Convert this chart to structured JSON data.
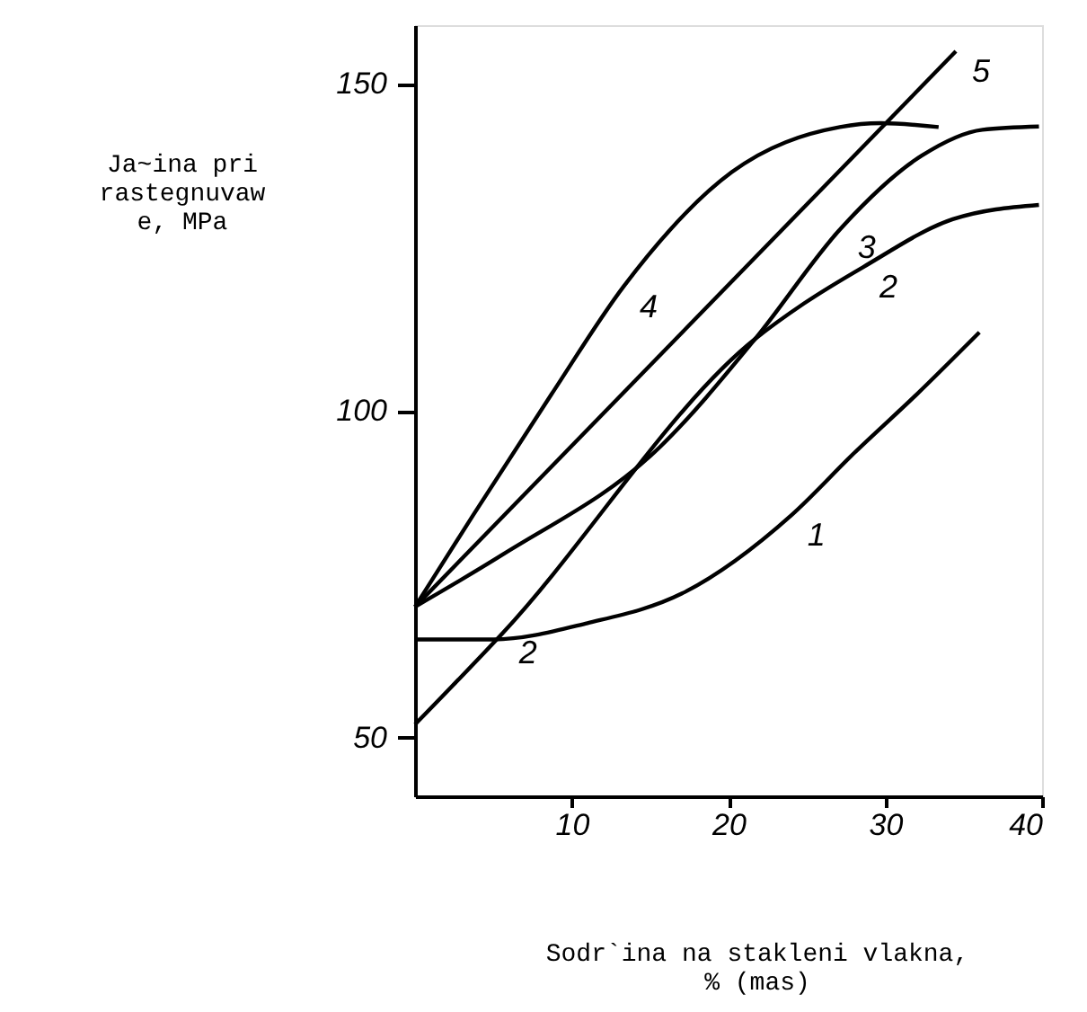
{
  "chart_data": {
    "type": "line",
    "xlabel": "Sodr`ina na stakleni vlakna, % (mas)",
    "ylabel": "Ja~ina pri rastegnuvawe, MPa",
    "xlim": [
      0,
      40
    ],
    "ylim": [
      41,
      159
    ],
    "xticks": [
      10,
      20,
      30,
      40
    ],
    "yticks": [
      50,
      100,
      150
    ],
    "grid": false,
    "marker": "none",
    "line_style": "solid",
    "series": [
      {
        "color": "#000000",
        "x": [
          0,
          5,
          11,
          17,
          24,
          28,
          32,
          36
        ],
        "values": [
          65,
          65,
          67.5,
          72,
          84,
          93.5,
          102.5,
          112
        ]
      },
      {
        "color": "#000000",
        "x": [
          0,
          5.6,
          21.7,
          24.8,
          28.6,
          34.3,
          39.8
        ],
        "values": [
          52,
          66,
          111,
          116.4,
          122,
          129.3,
          131.5
        ]
      },
      {
        "color": "#000000",
        "x": [
          0,
          5.6,
          15.6,
          21.7,
          27.2,
          32.3,
          36.2,
          39.8
        ],
        "values": [
          70,
          78,
          94.4,
          111,
          128,
          139,
          143,
          143.5
        ]
      },
      {
        "color": "#000000",
        "x": [
          0,
          3.7,
          8.7,
          13.3,
          20.2,
          27.1,
          29.7,
          33.4
        ],
        "values": [
          70,
          84,
          102.5,
          119,
          136.5,
          143.4,
          144,
          143.4
        ]
      },
      {
        "color": "#000000",
        "x": [
          0,
          34.5
        ],
        "values": [
          70,
          155
        ]
      }
    ],
    "annotations": [
      {
        "text": "1",
        "x": 24,
        "y": 84
      },
      {
        "text": "2",
        "x": 5.6,
        "y": 66
      },
      {
        "text": "2",
        "x": 28.6,
        "y": 122
      },
      {
        "text": "3",
        "x": 27.2,
        "y": 128
      },
      {
        "text": "4",
        "x": 13.3,
        "y": 119
      },
      {
        "text": "5",
        "x": 34.5,
        "y": 155
      }
    ]
  }
}
